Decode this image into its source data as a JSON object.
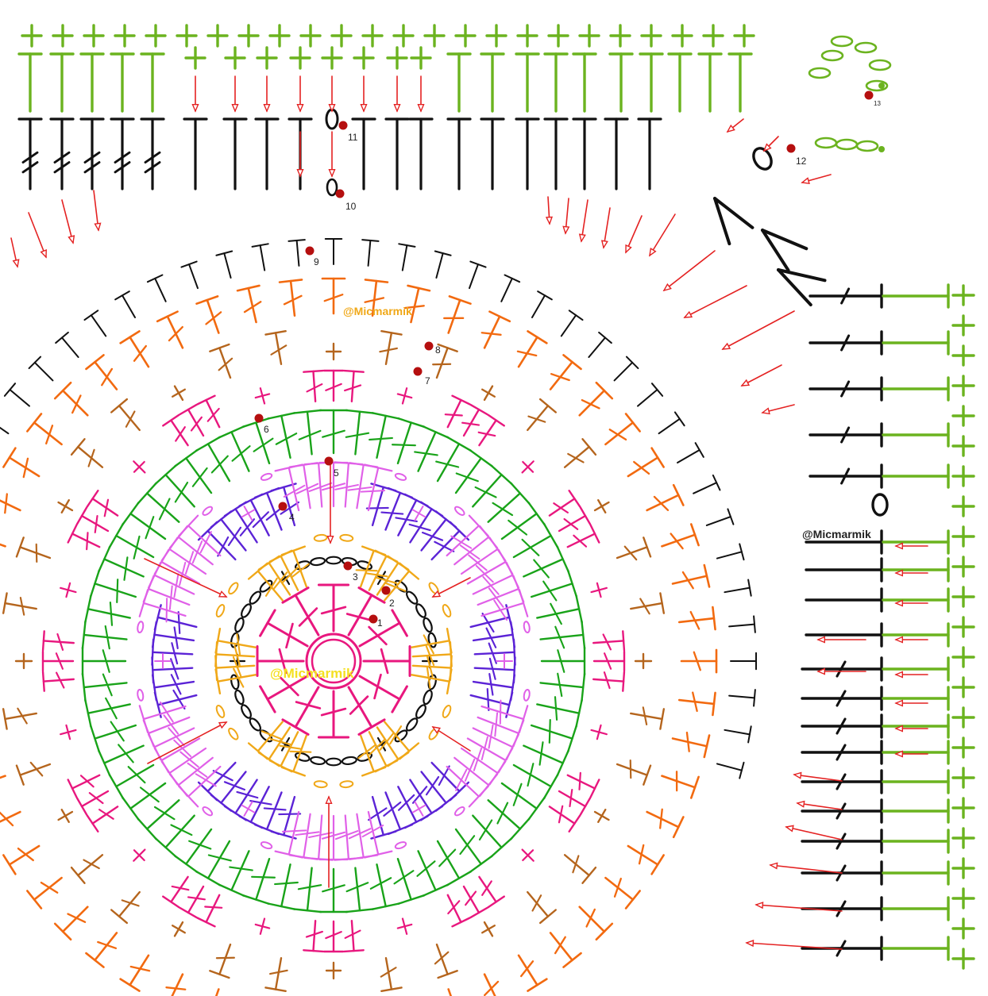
{
  "watermarks": {
    "center": "@Micmarmik",
    "upper": "@Micmarmik",
    "right": "@Micmarmik"
  },
  "round_labels": [
    "1",
    "2",
    "3",
    "4",
    "5",
    "6",
    "7",
    "8",
    "9",
    "10",
    "11",
    "12",
    "13"
  ],
  "colors": {
    "round1_magenta": "#e8177e",
    "round2_black": "#111111",
    "round3_gold": "#f0a818",
    "round4_purple": "#5b23d6",
    "round5_violet": "#e060e8",
    "round6_green": "#19a319",
    "round7_pink": "#e8177e",
    "round8_brown": "#b5651d",
    "round9_orange": "#f26a10",
    "round10_black": "#111111",
    "round11_black": "#111111",
    "round12_lime": "#6bb31f",
    "marker_red": "#b50f0f",
    "arrow_red": "#e42222",
    "center_watermark": "#f4e020",
    "orange_watermark": "#f0a818",
    "dark_watermark": "#222222"
  },
  "icons": {
    "stitch_dc": "double-crochet-icon",
    "stitch_sc": "single-crochet-icon",
    "stitch_ch": "chain-icon",
    "stitch_tr": "treble-crochet-icon",
    "marker": "round-start-marker-icon",
    "arrow": "direction-arrow-icon"
  }
}
